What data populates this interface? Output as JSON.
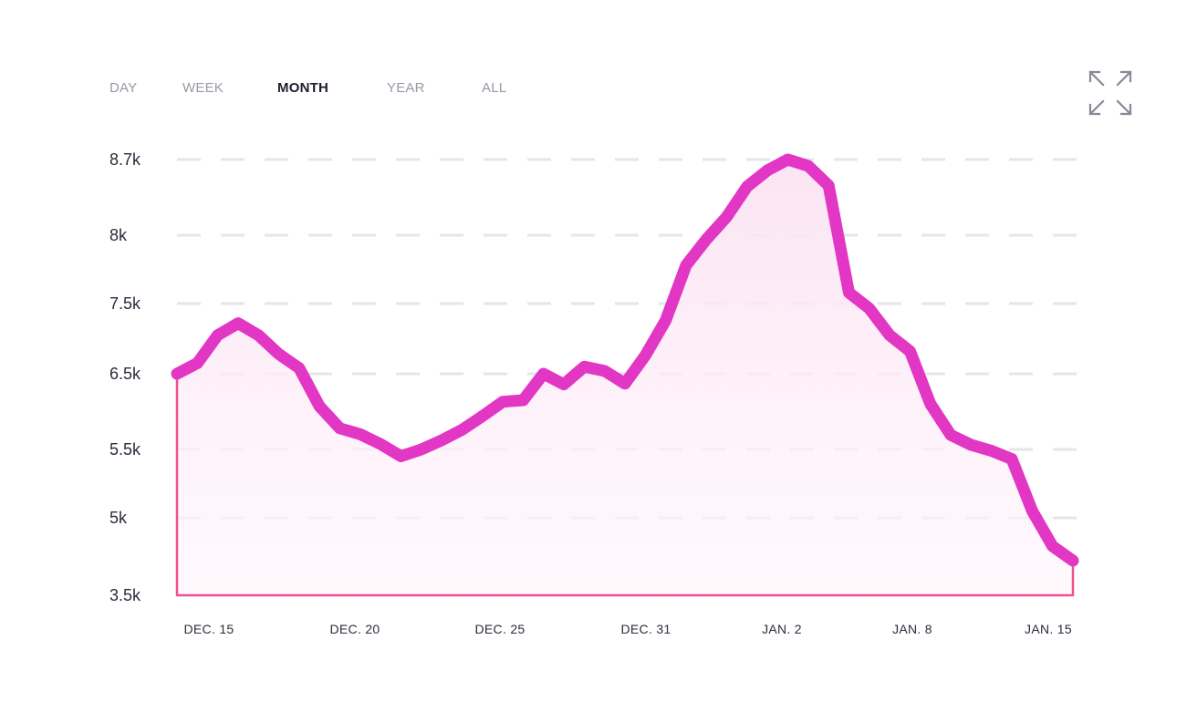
{
  "tabs": [
    {
      "label": "DAY",
      "active": false
    },
    {
      "label": "WEEK",
      "active": false
    },
    {
      "label": "MONTH",
      "active": true
    },
    {
      "label": "YEAR",
      "active": false
    },
    {
      "label": "ALL",
      "active": false
    }
  ],
  "toolbar": {
    "expand_icon": "expand-arrows-icon"
  },
  "colors": {
    "line": "#e236c5",
    "baseline": "#f0508f",
    "area_top": "#fbe3f3",
    "grid": "#e6e6ea",
    "tab_active": "#1f1d2b",
    "tab_inactive": "#9a98a6",
    "tick_text": "#2d2b3c"
  },
  "chart_data": {
    "type": "area",
    "title": "",
    "xlabel": "",
    "ylabel": "",
    "grid": true,
    "y_ticks": [
      "3.5k",
      "5k",
      "5.5k",
      "6.5k",
      "7.5k",
      "8k",
      "8.7k"
    ],
    "x_ticks": [
      "DEC. 15",
      "DEC. 20",
      "DEC. 25",
      "DEC. 31",
      "JAN. 2",
      "JAN. 8",
      "JAN. 15"
    ],
    "series": [
      {
        "values": [
          6.5,
          6.65,
          7.05,
          7.22,
          7.05,
          6.78,
          6.58,
          6.07,
          5.78,
          5.7,
          5.57,
          5.45,
          5.5,
          5.62,
          5.76,
          5.94,
          6.13,
          6.15,
          6.5,
          6.36,
          6.6,
          6.54,
          6.37,
          6.76,
          7.26,
          7.78,
          7.97,
          8.17,
          8.45,
          8.6,
          8.7,
          8.64,
          8.46,
          7.58,
          7.43,
          7.05,
          6.82,
          6.1,
          5.69,
          5.56,
          5.49,
          5.43,
          5.05,
          4.45,
          4.17
        ]
      }
    ]
  }
}
